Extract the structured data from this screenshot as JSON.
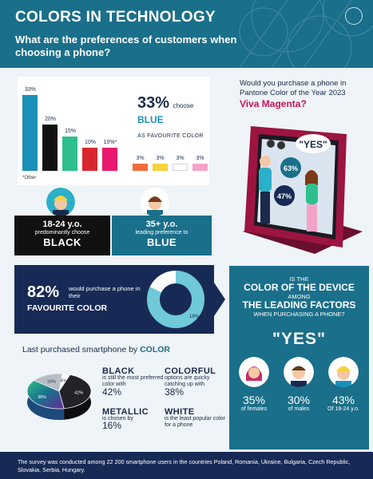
{
  "header": {
    "title": "COLORS IN TECHNOLOGY",
    "subtitle": "What are the preferences of customers when choosing a phone?"
  },
  "chart_data": [
    {
      "type": "bar",
      "categories": [
        "Blue",
        "Black",
        "Green",
        "Red",
        "Other",
        "Orange",
        "Yellow",
        "White",
        "Pink"
      ],
      "values": [
        33,
        20,
        15,
        10,
        10,
        3,
        3,
        3,
        3
      ],
      "value_labels": [
        "33%",
        "20%",
        "15%",
        "10%",
        "10%*",
        "3%",
        "3%",
        "3%",
        "3%"
      ],
      "colors": [
        "#1a8fb8",
        "#111111",
        "#2fbf8f",
        "#d8262e",
        "#e8186e",
        "#f06a3a",
        "#f6d23c",
        "#ffffff",
        "#f4a3c8"
      ],
      "footnote": "*Other",
      "ylim": [
        0,
        33
      ]
    },
    {
      "type": "pie",
      "labels": [
        "would purchase",
        "other"
      ],
      "values": [
        82,
        18
      ],
      "value_labels": [
        "82%",
        "18%"
      ]
    },
    {
      "type": "pie",
      "labels": [
        "Black",
        "Colorful",
        "Metallic",
        "White"
      ],
      "values": [
        42,
        38,
        16,
        4
      ],
      "value_labels": [
        "42%",
        "38%",
        "16%",
        "4%"
      ]
    }
  ],
  "bar_callout": {
    "pct": "33%",
    "choose": "choose",
    "blue": "BLUE",
    "fav": "AS FAVOURITE COLOR"
  },
  "magenta": {
    "question": "Would you purchase a phone in Pantone Color of the Year 2023",
    "highlight": "Viva Magenta?",
    "yes_bubble": "\"YES\"",
    "pct_a": "63%",
    "pct_b": "47%"
  },
  "age_young": {
    "age": "18-24 y.o.",
    "sub": "predominantly choose",
    "color": "BLACK"
  },
  "age_old": {
    "age": "35+ y.o.",
    "sub": "leading preference to",
    "color": "BLUE"
  },
  "fav_color": {
    "pct": "82%",
    "text1": "would purchase a phone in their",
    "text2": "FAVOURITE COLOR"
  },
  "leading": {
    "l1": "IS THE",
    "l2": "COLOR OF THE DEVICE",
    "l3": "AMONG",
    "l4": "THE LEADING FACTORS",
    "l5": "WHEN PURCHASING A PHONE?",
    "yes": "\"YES\"",
    "stats": [
      {
        "value": "35%",
        "label": "of females"
      },
      {
        "value": "30%",
        "label": "of males"
      },
      {
        "value": "43%",
        "label": "Of 18-24 y.o."
      }
    ]
  },
  "last_purchased": {
    "title_pre": "Last purchased smartphone by ",
    "title_bold": "COLOR",
    "black": {
      "head": "BLACK",
      "text": "is still the most preferred color with",
      "pct": "42%"
    },
    "colorful": {
      "head": "COLORFUL",
      "text": "options are quicky catching up with",
      "pct": "38%"
    },
    "metallic": {
      "head": "METALLIC",
      "text": "is chosen by",
      "pct": "16%"
    },
    "white": {
      "head": "WHITE",
      "text": "is the least popular color for a phone"
    }
  },
  "footer": "The survey was conducted among 22 200 smartphone users in the countries Poland, Romania, Ukraine, Bulgaria, Czech Republic, Slovakia, Serbia, Hungary."
}
